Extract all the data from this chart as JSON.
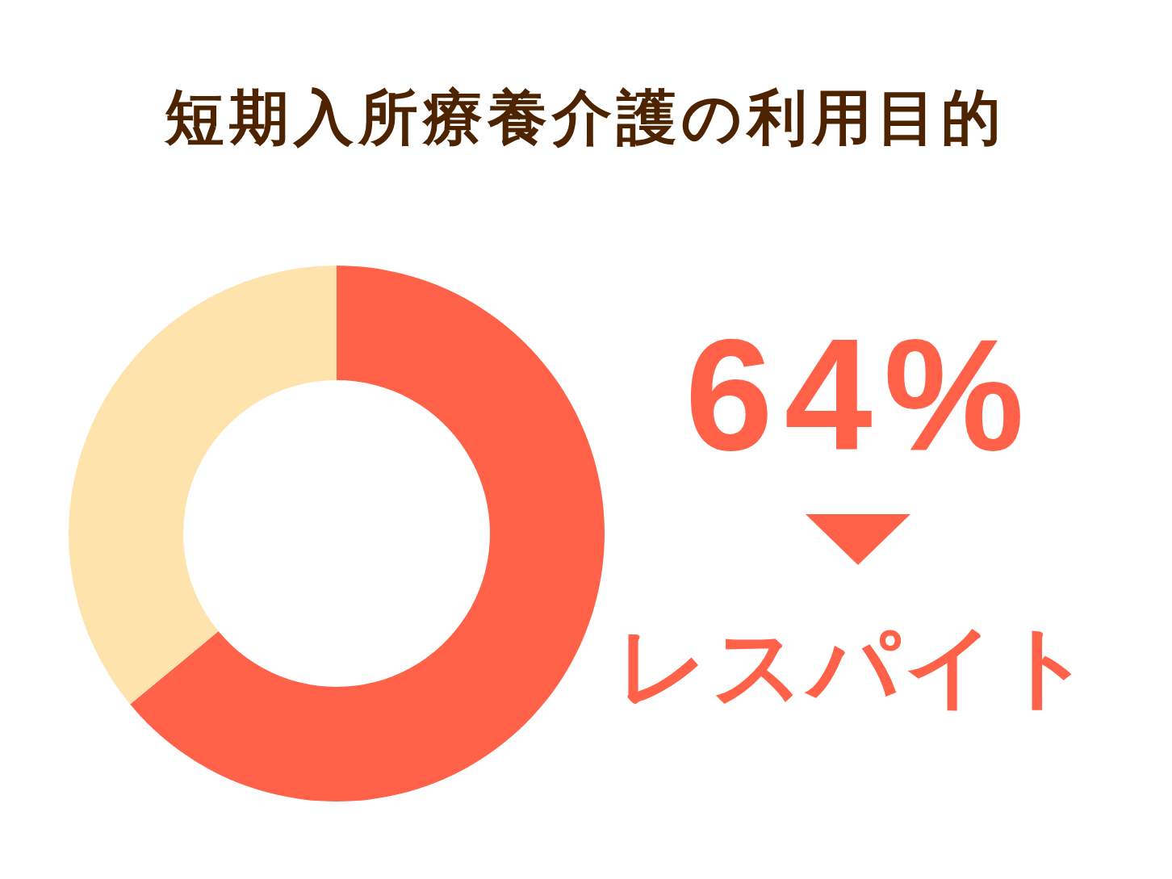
{
  "chart_data": {
    "type": "donut",
    "title": "短期入所療養介護の利用目的",
    "categories": [
      "レスパイト",
      null
    ],
    "values": [
      64,
      36
    ],
    "colors": [
      "#ff6249",
      "#fee3ad"
    ],
    "value_labels": [
      "64%",
      null
    ]
  }
}
